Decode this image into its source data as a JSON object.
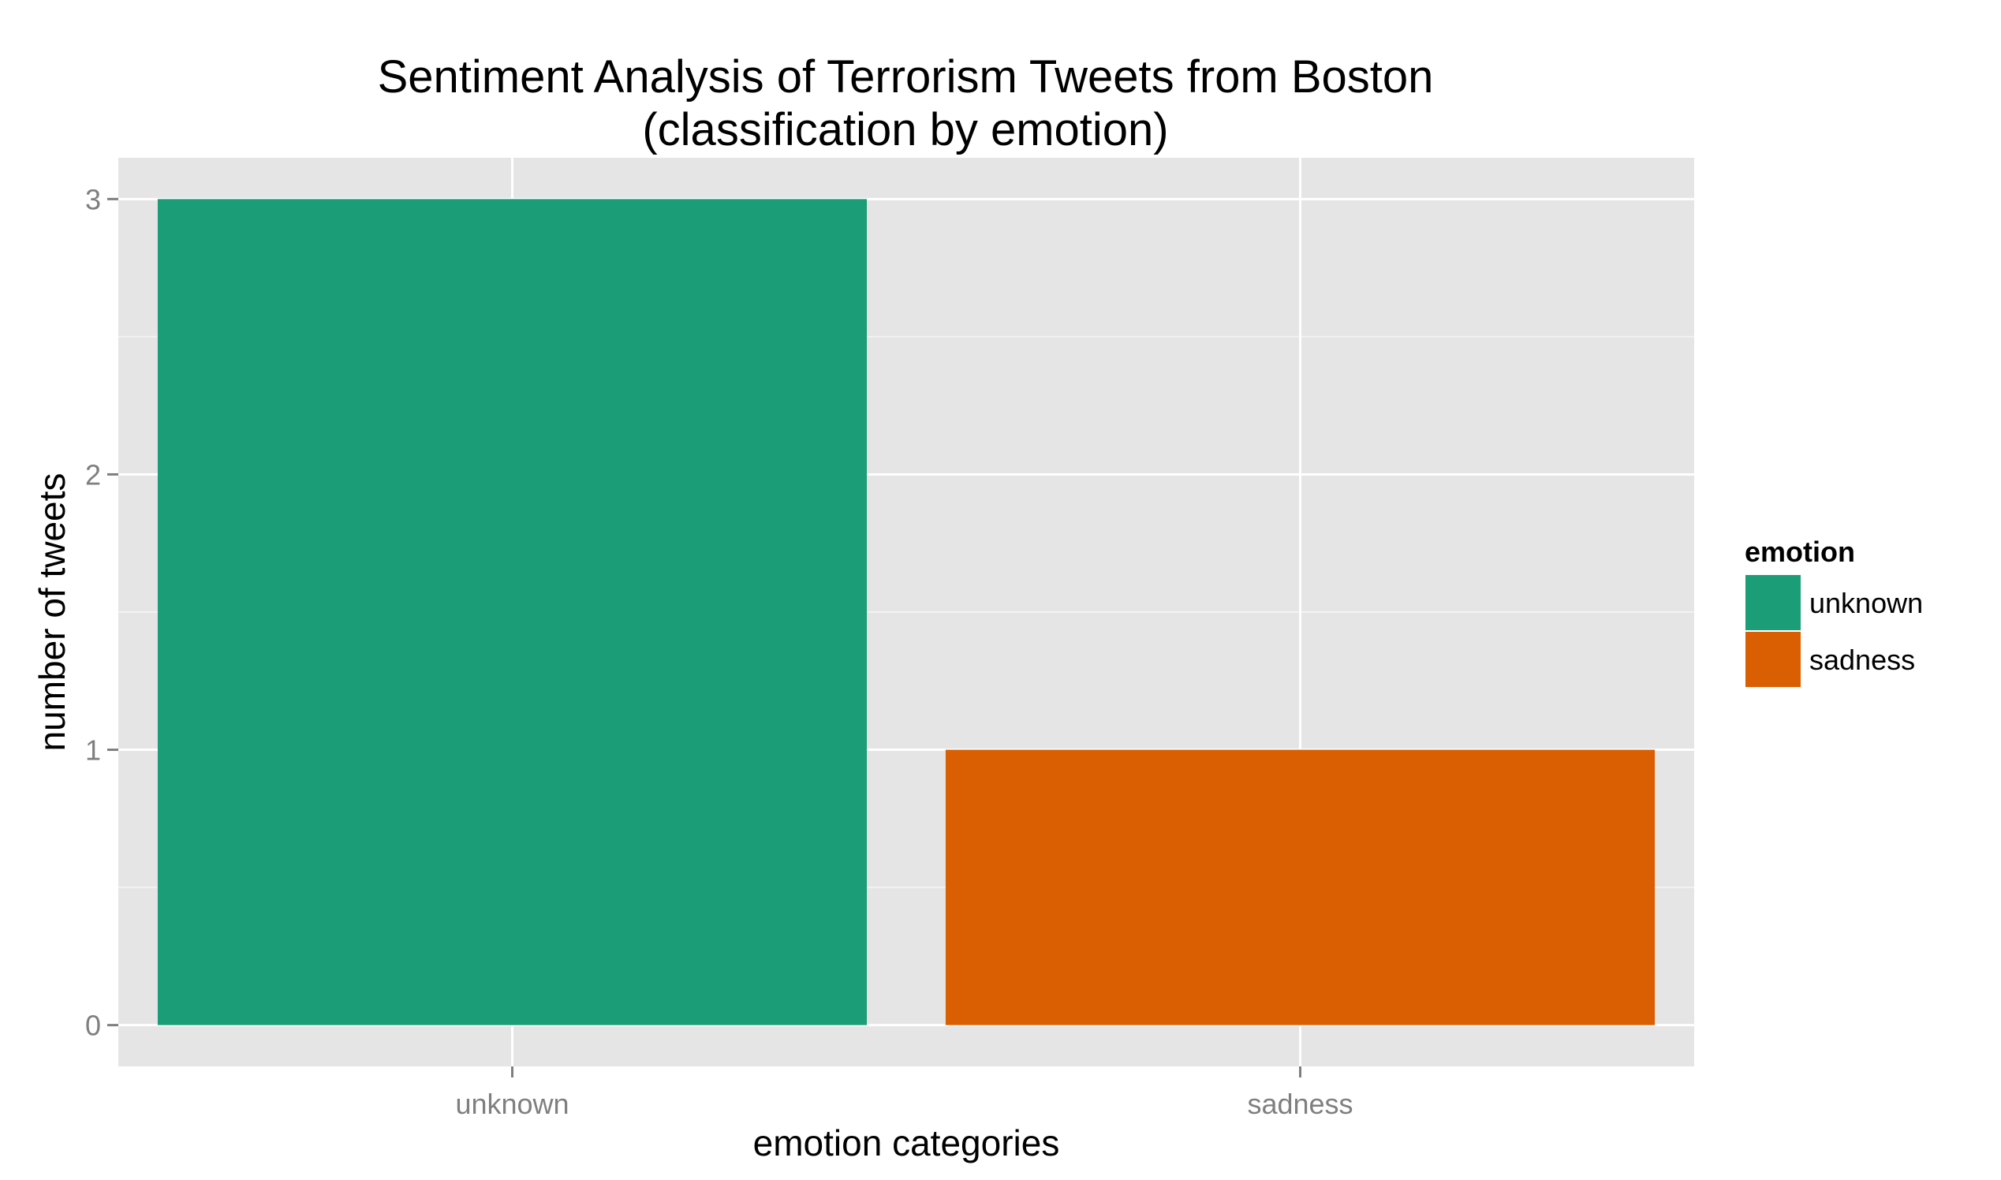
{
  "chart_data": {
    "type": "bar",
    "title": "Sentiment Analysis of Terrorism Tweets from Boston",
    "subtitle": "(classification by emotion)",
    "xlabel": "emotion categories",
    "ylabel": "number of tweets",
    "categories": [
      "unknown",
      "sadness"
    ],
    "values": [
      3,
      1
    ],
    "colors": [
      "#1b9e77",
      "#d95f02"
    ],
    "ylim": [
      -0.15,
      3.15
    ],
    "yticks": [
      0,
      1,
      2,
      3
    ],
    "grid": true,
    "panel_background": "#e5e5e5",
    "legend": {
      "title": "emotion",
      "position": "right",
      "entries": [
        "unknown",
        "sadness"
      ]
    }
  }
}
